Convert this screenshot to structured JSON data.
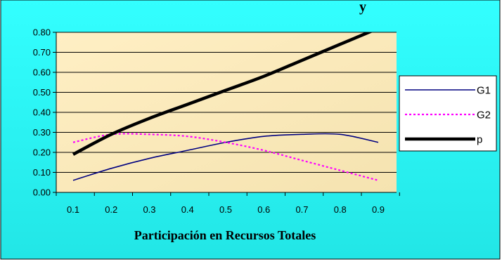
{
  "chart_data": {
    "type": "line",
    "title": "y",
    "xlabel": "Participación en Recursos Totales",
    "ylabel": "",
    "x": [
      0.1,
      0.2,
      0.3,
      0.4,
      0.5,
      0.6,
      0.7,
      0.8,
      0.9
    ],
    "x_tick_labels": [
      "0.1",
      "0.2",
      "0.3",
      "0.4",
      "0.5",
      "0.6",
      "0.7",
      "0.8",
      "0.9"
    ],
    "ylim": [
      0,
      0.8
    ],
    "y_tick_labels": [
      "0.00",
      "0.10",
      "0.20",
      "0.30",
      "0.40",
      "0.50",
      "0.60",
      "0.70",
      "0.80"
    ],
    "grid": "horizontal",
    "legend_position": "right",
    "series": [
      {
        "name": "G1",
        "color": "#000080",
        "style": "solid",
        "values": [
          0.06,
          0.12,
          0.17,
          0.21,
          0.25,
          0.28,
          0.29,
          0.29,
          0.25
        ]
      },
      {
        "name": "G2",
        "color": "#ff00ff",
        "style": "dotted",
        "values": [
          0.25,
          0.29,
          0.29,
          0.28,
          0.25,
          0.21,
          0.16,
          0.11,
          0.06
        ]
      },
      {
        "name": "p",
        "color": "#000000",
        "style": "thick",
        "values": [
          0.19,
          0.29,
          0.37,
          0.44,
          0.51,
          0.58,
          0.66,
          0.74,
          0.82
        ]
      }
    ],
    "colors": {
      "frame_bg": "#33ffff",
      "plot_bg": "#ffefc4",
      "grid": "#000000"
    }
  }
}
